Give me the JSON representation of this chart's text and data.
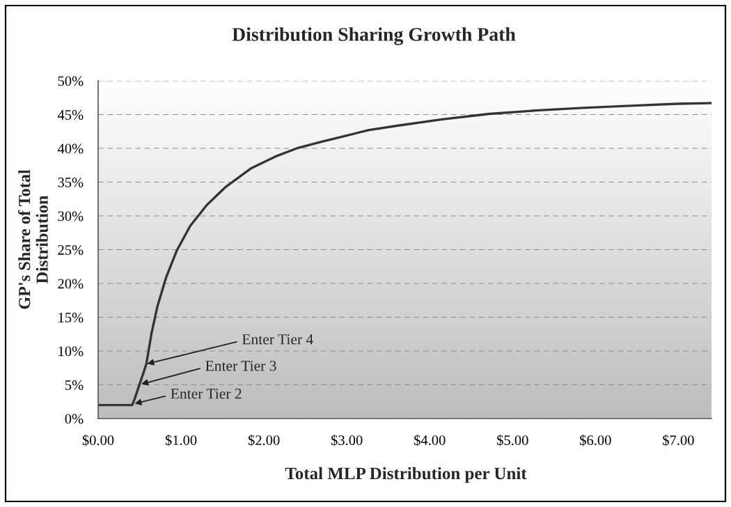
{
  "chart_data": {
    "type": "line",
    "title": "Distribution Sharing Growth Path",
    "xlabel": "Total MLP Distribution per Unit",
    "ylabel": "GP's Share of Total\nDistribution",
    "x": [
      0,
      0.41,
      0.44,
      0.58,
      0.645,
      0.715,
      0.82,
      0.95,
      1.11,
      1.31,
      1.54,
      1.84,
      2.14,
      2.42,
      2.7,
      3.0,
      3.26,
      3.58,
      4.15,
      4.72,
      5.28,
      5.85,
      6.42,
      6.99,
      7.4
    ],
    "series": [
      {
        "color": "#333333",
        "values": [
          2,
          2,
          2.9,
          8.0,
          12.7,
          16.6,
          20.9,
          24.9,
          28.5,
          31.6,
          34.3,
          37.0,
          38.8,
          40.1,
          41.0,
          41.9,
          42.7,
          43.3,
          44.3,
          45.1,
          45.6,
          46.0,
          46.3,
          46.6,
          46.7
        ]
      }
    ],
    "xlim": [
      0,
      7.4
    ],
    "ylim": [
      0,
      50
    ],
    "xticks": [
      {
        "value": 0,
        "label": "$0.00"
      },
      {
        "value": 1,
        "label": "$1.00"
      },
      {
        "value": 2,
        "label": "$2.00"
      },
      {
        "value": 3,
        "label": "$3.00"
      },
      {
        "value": 4,
        "label": "$4.00"
      },
      {
        "value": 5,
        "label": "$5.00"
      },
      {
        "value": 6,
        "label": "$6.00"
      },
      {
        "value": 7,
        "label": "$7.00"
      }
    ],
    "yticks": [
      {
        "value": 0,
        "label": "0%"
      },
      {
        "value": 5,
        "label": "5%"
      },
      {
        "value": 10,
        "label": "10%"
      },
      {
        "value": 15,
        "label": "15%"
      },
      {
        "value": 20,
        "label": "20%"
      },
      {
        "value": 25,
        "label": "25%"
      },
      {
        "value": 30,
        "label": "30%"
      },
      {
        "value": 35,
        "label": "35%"
      },
      {
        "value": 40,
        "label": "40%"
      },
      {
        "value": 45,
        "label": "45%"
      },
      {
        "value": 50,
        "label": "50%"
      }
    ],
    "grid": "y",
    "line_style": "solid",
    "annotations": [
      {
        "text": "Enter Tier 2",
        "x": 0.44,
        "y": 2.2
      },
      {
        "text": "Enter Tier 3",
        "x": 0.52,
        "y": 5.1
      },
      {
        "text": "Enter Tier 4",
        "x": 0.59,
        "y": 8.1
      }
    ]
  }
}
